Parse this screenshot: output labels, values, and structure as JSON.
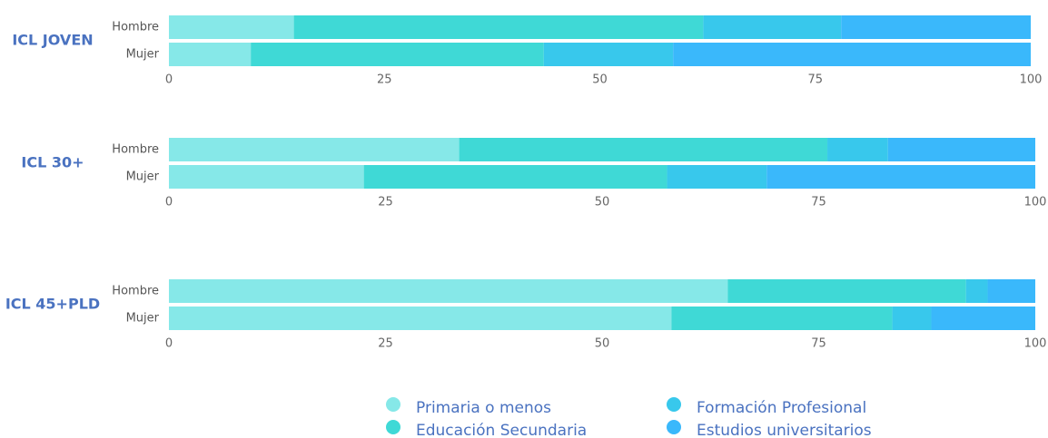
{
  "chart_data": [
    {
      "type": "stacked_bar_horizontal",
      "title": "ICL JOVEN",
      "categories": [
        "Hombre",
        "Mujer"
      ],
      "series": [
        {
          "name": "Primaria o menos",
          "color": "#86e8e8",
          "values": [
            14.5,
            9.5
          ]
        },
        {
          "name": "Educación Secundaria",
          "color": "#3fd9d6",
          "values": [
            47.5,
            34
          ]
        },
        {
          "name": "Formación Profesional",
          "color": "#38c8ec",
          "values": [
            16,
            15
          ]
        },
        {
          "name": "Estudios universitarios",
          "color": "#3ab8fb",
          "values": [
            22,
            41.5
          ]
        }
      ],
      "xlim": [
        0,
        100
      ],
      "xticks": [
        0,
        25,
        50,
        75,
        100
      ]
    },
    {
      "type": "stacked_bar_horizontal",
      "title": "ICL 30+",
      "categories": [
        "Hombre",
        "Mujer"
      ],
      "series": [
        {
          "name": "Primaria o menos",
          "color": "#86e8e8",
          "values": [
            33.5,
            22.5
          ]
        },
        {
          "name": "Educación Secundaria",
          "color": "#3fd9d6",
          "values": [
            42.5,
            35
          ]
        },
        {
          "name": "Formación Profesional",
          "color": "#38c8ec",
          "values": [
            7,
            11.5
          ]
        },
        {
          "name": "Estudios universitarios",
          "color": "#3ab8fb",
          "values": [
            17,
            31
          ]
        }
      ],
      "xlim": [
        0,
        100
      ],
      "xticks": [
        0,
        25,
        50,
        75,
        100
      ]
    },
    {
      "type": "stacked_bar_horizontal",
      "title": "ICL 45+PLD",
      "categories": [
        "Hombre",
        "Mujer"
      ],
      "series": [
        {
          "name": "Primaria o menos",
          "color": "#86e8e8",
          "values": [
            64.5,
            58
          ]
        },
        {
          "name": "Educación Secundaria",
          "color": "#3fd9d6",
          "values": [
            27.5,
            25.5
          ]
        },
        {
          "name": "Formación Profesional",
          "color": "#38c8ec",
          "values": [
            2.5,
            4.5
          ]
        },
        {
          "name": "Estudios universitarios",
          "color": "#3ab8fb",
          "values": [
            5.5,
            12
          ]
        }
      ],
      "xlim": [
        0,
        100
      ],
      "xticks": [
        0,
        25,
        50,
        75,
        100
      ]
    }
  ]
}
